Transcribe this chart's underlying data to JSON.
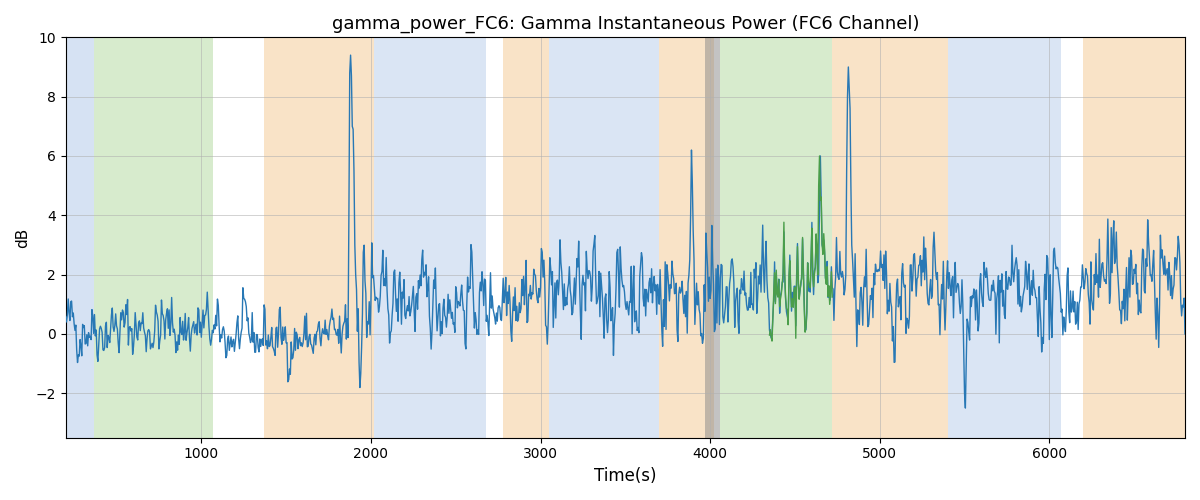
{
  "title": "gamma_power_FC6: Gamma Instantaneous Power (FC6 Channel)",
  "xlabel": "Time(s)",
  "ylabel": "dB",
  "ylim": [
    -3.5,
    10
  ],
  "xlim": [
    200,
    6800
  ],
  "yticks": [
    -2,
    0,
    2,
    4,
    6,
    8,
    10
  ],
  "xticks": [
    1000,
    2000,
    3000,
    4000,
    5000,
    6000
  ],
  "line_color": "#2878b5",
  "line_color2": "#4a9e4a",
  "line_width": 1.0,
  "seed": 42,
  "bands": [
    {
      "xmin": 200,
      "xmax": 370,
      "color": "#aec6e8",
      "alpha": 0.5
    },
    {
      "xmin": 370,
      "xmax": 1070,
      "color": "#b0d89c",
      "alpha": 0.5
    },
    {
      "xmin": 1370,
      "xmax": 2020,
      "color": "#f5c990",
      "alpha": 0.5
    },
    {
      "xmin": 2020,
      "xmax": 2680,
      "color": "#aec6e8",
      "alpha": 0.45
    },
    {
      "xmin": 2780,
      "xmax": 3050,
      "color": "#f5c990",
      "alpha": 0.5
    },
    {
      "xmin": 3050,
      "xmax": 3700,
      "color": "#aec6e8",
      "alpha": 0.45
    },
    {
      "xmin": 3700,
      "xmax": 4020,
      "color": "#f5c990",
      "alpha": 0.5
    },
    {
      "xmin": 3970,
      "xmax": 4060,
      "color": "#888888",
      "alpha": 0.5
    },
    {
      "xmin": 4060,
      "xmax": 4720,
      "color": "#b0d89c",
      "alpha": 0.5
    },
    {
      "xmin": 4720,
      "xmax": 5400,
      "color": "#f5c990",
      "alpha": 0.5
    },
    {
      "xmin": 5400,
      "xmax": 6070,
      "color": "#aec6e8",
      "alpha": 0.45
    },
    {
      "xmin": 6200,
      "xmax": 6800,
      "color": "#f5c990",
      "alpha": 0.5
    }
  ]
}
